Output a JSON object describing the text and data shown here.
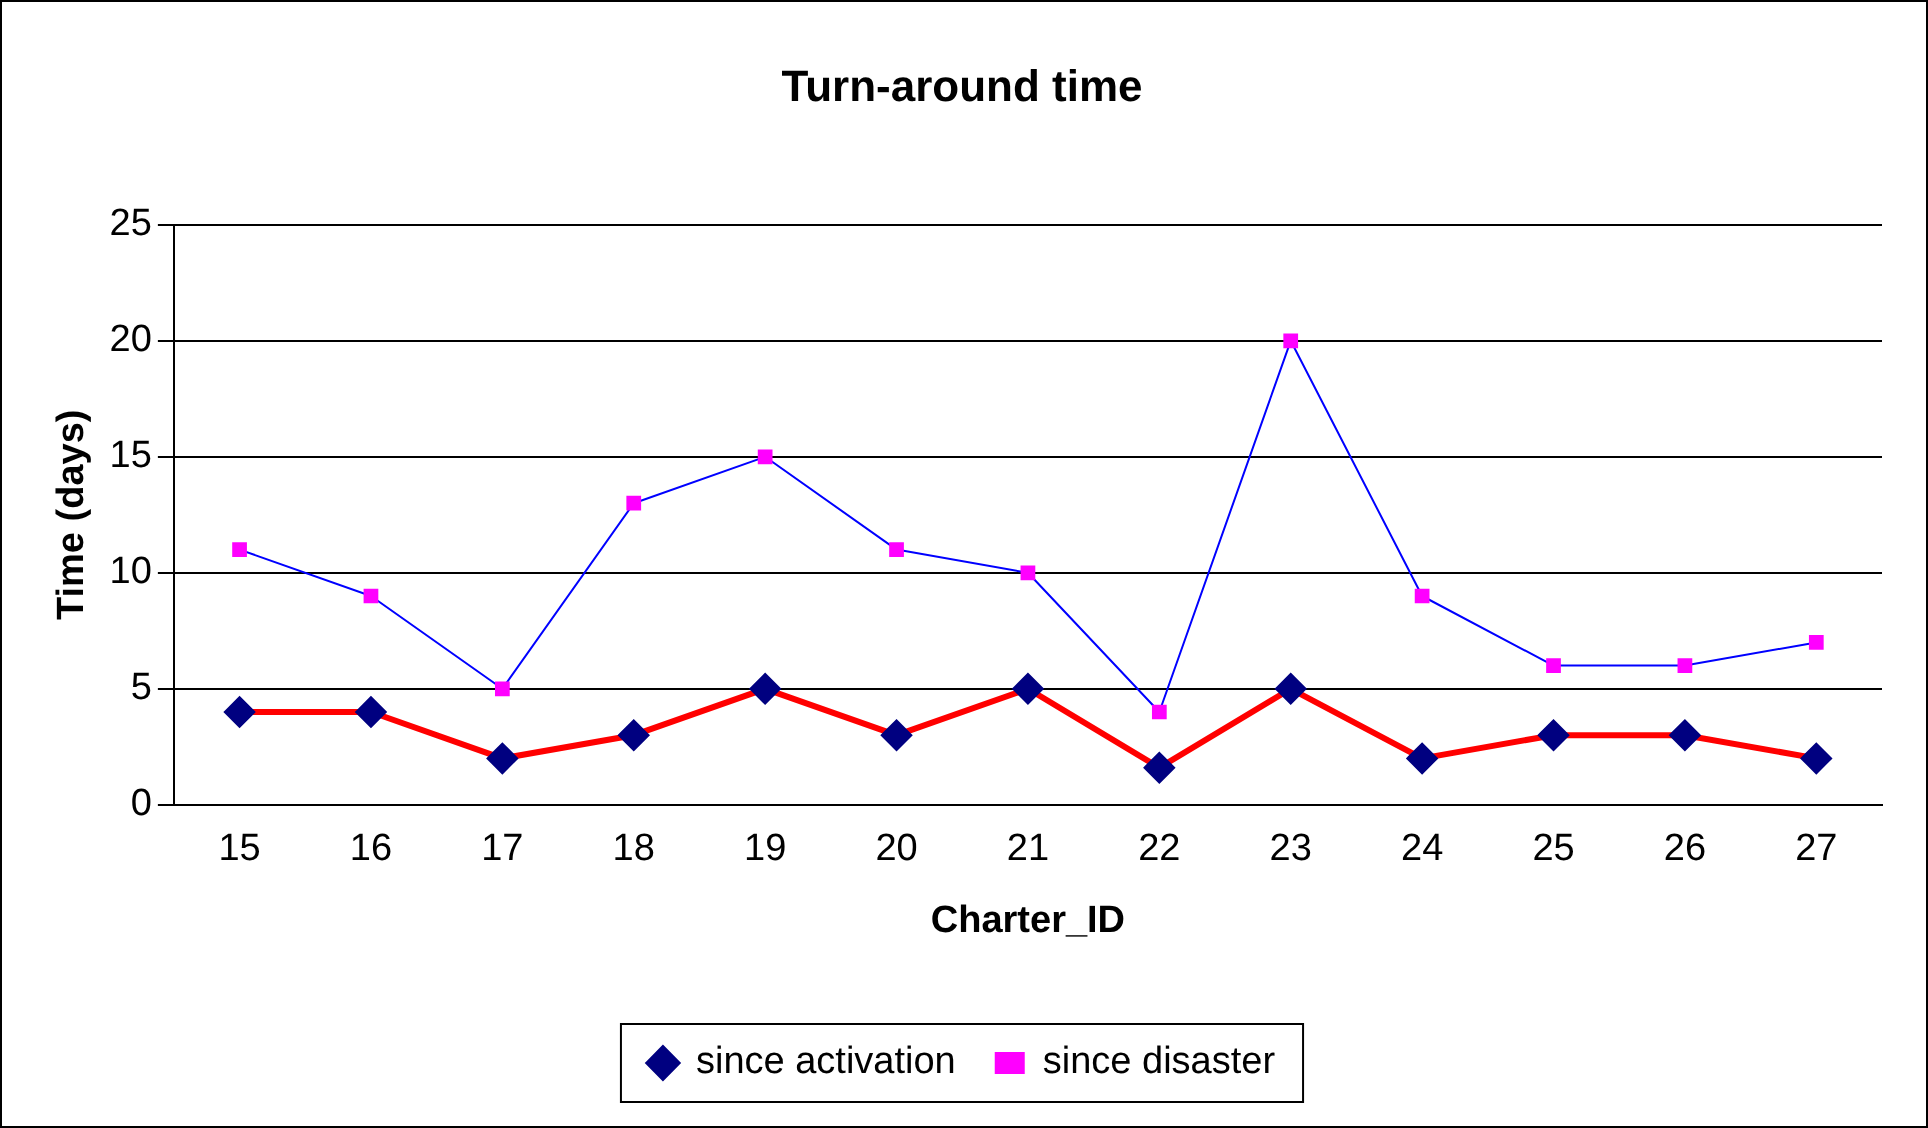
{
  "chart_data": {
    "type": "line",
    "title": "Turn-around time",
    "xlabel": "Charter_ID",
    "ylabel": "Time (days)",
    "categories": [
      "15",
      "16",
      "17",
      "18",
      "19",
      "20",
      "21",
      "22",
      "23",
      "24",
      "25",
      "26",
      "27"
    ],
    "series": [
      {
        "name": "since activation",
        "color": "#ff0000",
        "marker": "diamond",
        "colors": [
          "#000080",
          "#000080",
          "#000080",
          "#000080",
          "#000080",
          "#000080",
          "#000080",
          "#000080",
          "#000080",
          "#000080",
          "#000080",
          "#000080",
          "#000080"
        ],
        "values": [
          4,
          4,
          2,
          3,
          5,
          3,
          5,
          1.6,
          5,
          2,
          3,
          3,
          2
        ]
      },
      {
        "name": "since disaster",
        "color": "#0000ff",
        "marker": "square",
        "colors": [
          "#ff00ff",
          "#ff00ff",
          "#ff00ff",
          "#ff00ff",
          "#ff00ff",
          "#ff00ff",
          "#ff00ff",
          "#ff00ff",
          "#ff00ff",
          "#ff00ff",
          "#ff00ff",
          "#ff00ff",
          "#ff00ff"
        ],
        "values": [
          11,
          9,
          5,
          13,
          15,
          11,
          10,
          4,
          20,
          9,
          6,
          6,
          7
        ]
      }
    ],
    "ylim": [
      0,
      25
    ],
    "yticks": [
      0,
      5,
      10,
      15,
      20,
      25
    ],
    "grid": "y",
    "legend": "bottom"
  }
}
